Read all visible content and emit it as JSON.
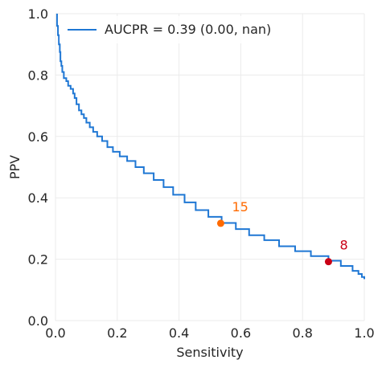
{
  "chart_data": {
    "type": "line",
    "title": "",
    "xlabel": "Sensitivity",
    "ylabel": "PPV",
    "xlim": [
      0.0,
      1.0
    ],
    "ylim": [
      0.0,
      1.0
    ],
    "xticks": [
      "0.0",
      "0.2",
      "0.4",
      "0.6",
      "0.8",
      "1.0"
    ],
    "yticks": [
      "0.0",
      "0.2",
      "0.4",
      "0.6",
      "0.8",
      "1.0"
    ],
    "grid": true,
    "legend": {
      "placement": "upper-left",
      "entries": [
        "AUCPR = 0.39 (0.00, nan)"
      ]
    },
    "series": [
      {
        "name": "AUCPR = 0.39 (0.00, nan)",
        "color": "#1f77d4",
        "drawstyle": "steps",
        "points": [
          [
            0.005,
            1.0
          ],
          [
            0.005,
            0.96
          ],
          [
            0.008,
            0.96
          ],
          [
            0.008,
            0.93
          ],
          [
            0.011,
            0.93
          ],
          [
            0.011,
            0.9
          ],
          [
            0.014,
            0.9
          ],
          [
            0.014,
            0.875
          ],
          [
            0.016,
            0.875
          ],
          [
            0.016,
            0.845
          ],
          [
            0.019,
            0.845
          ],
          [
            0.019,
            0.83
          ],
          [
            0.022,
            0.83
          ],
          [
            0.022,
            0.81
          ],
          [
            0.027,
            0.81
          ],
          [
            0.027,
            0.79
          ],
          [
            0.035,
            0.79
          ],
          [
            0.035,
            0.78
          ],
          [
            0.041,
            0.78
          ],
          [
            0.041,
            0.765
          ],
          [
            0.049,
            0.765
          ],
          [
            0.049,
            0.755
          ],
          [
            0.057,
            0.755
          ],
          [
            0.057,
            0.74
          ],
          [
            0.062,
            0.74
          ],
          [
            0.062,
            0.725
          ],
          [
            0.068,
            0.725
          ],
          [
            0.068,
            0.705
          ],
          [
            0.076,
            0.705
          ],
          [
            0.076,
            0.685
          ],
          [
            0.084,
            0.685
          ],
          [
            0.084,
            0.672
          ],
          [
            0.092,
            0.672
          ],
          [
            0.092,
            0.66
          ],
          [
            0.1,
            0.66
          ],
          [
            0.1,
            0.645
          ],
          [
            0.111,
            0.645
          ],
          [
            0.111,
            0.63
          ],
          [
            0.122,
            0.63
          ],
          [
            0.122,
            0.615
          ],
          [
            0.135,
            0.615
          ],
          [
            0.135,
            0.6
          ],
          [
            0.151,
            0.6
          ],
          [
            0.151,
            0.585
          ],
          [
            0.168,
            0.585
          ],
          [
            0.168,
            0.565
          ],
          [
            0.186,
            0.565
          ],
          [
            0.186,
            0.55
          ],
          [
            0.208,
            0.55
          ],
          [
            0.208,
            0.535
          ],
          [
            0.232,
            0.535
          ],
          [
            0.232,
            0.52
          ],
          [
            0.259,
            0.52
          ],
          [
            0.259,
            0.5
          ],
          [
            0.286,
            0.5
          ],
          [
            0.286,
            0.48
          ],
          [
            0.318,
            0.48
          ],
          [
            0.318,
            0.458
          ],
          [
            0.35,
            0.458
          ],
          [
            0.35,
            0.435
          ],
          [
            0.381,
            0.435
          ],
          [
            0.381,
            0.41
          ],
          [
            0.418,
            0.41
          ],
          [
            0.418,
            0.385
          ],
          [
            0.454,
            0.385
          ],
          [
            0.454,
            0.36
          ],
          [
            0.495,
            0.36
          ],
          [
            0.495,
            0.338
          ],
          [
            0.538,
            0.338
          ],
          [
            0.538,
            0.318
          ],
          [
            0.584,
            0.318
          ],
          [
            0.584,
            0.298
          ],
          [
            0.627,
            0.298
          ],
          [
            0.627,
            0.278
          ],
          [
            0.676,
            0.278
          ],
          [
            0.676,
            0.262
          ],
          [
            0.724,
            0.262
          ],
          [
            0.724,
            0.242
          ],
          [
            0.776,
            0.242
          ],
          [
            0.776,
            0.226
          ],
          [
            0.827,
            0.226
          ],
          [
            0.827,
            0.21
          ],
          [
            0.884,
            0.21
          ],
          [
            0.884,
            0.195
          ],
          [
            0.924,
            0.195
          ],
          [
            0.924,
            0.178
          ],
          [
            0.962,
            0.178
          ],
          [
            0.962,
            0.162
          ],
          [
            0.981,
            0.162
          ],
          [
            0.981,
            0.152
          ],
          [
            0.992,
            0.152
          ],
          [
            0.992,
            0.142
          ],
          [
            1.0,
            0.142
          ],
          [
            1.0,
            0.135
          ]
        ]
      }
    ],
    "annotations": [
      {
        "label": "15",
        "x": 0.535,
        "y": 0.317,
        "color": "#ff6a00"
      },
      {
        "label": "8",
        "x": 0.884,
        "y": 0.192,
        "color": "#c90016"
      }
    ]
  }
}
